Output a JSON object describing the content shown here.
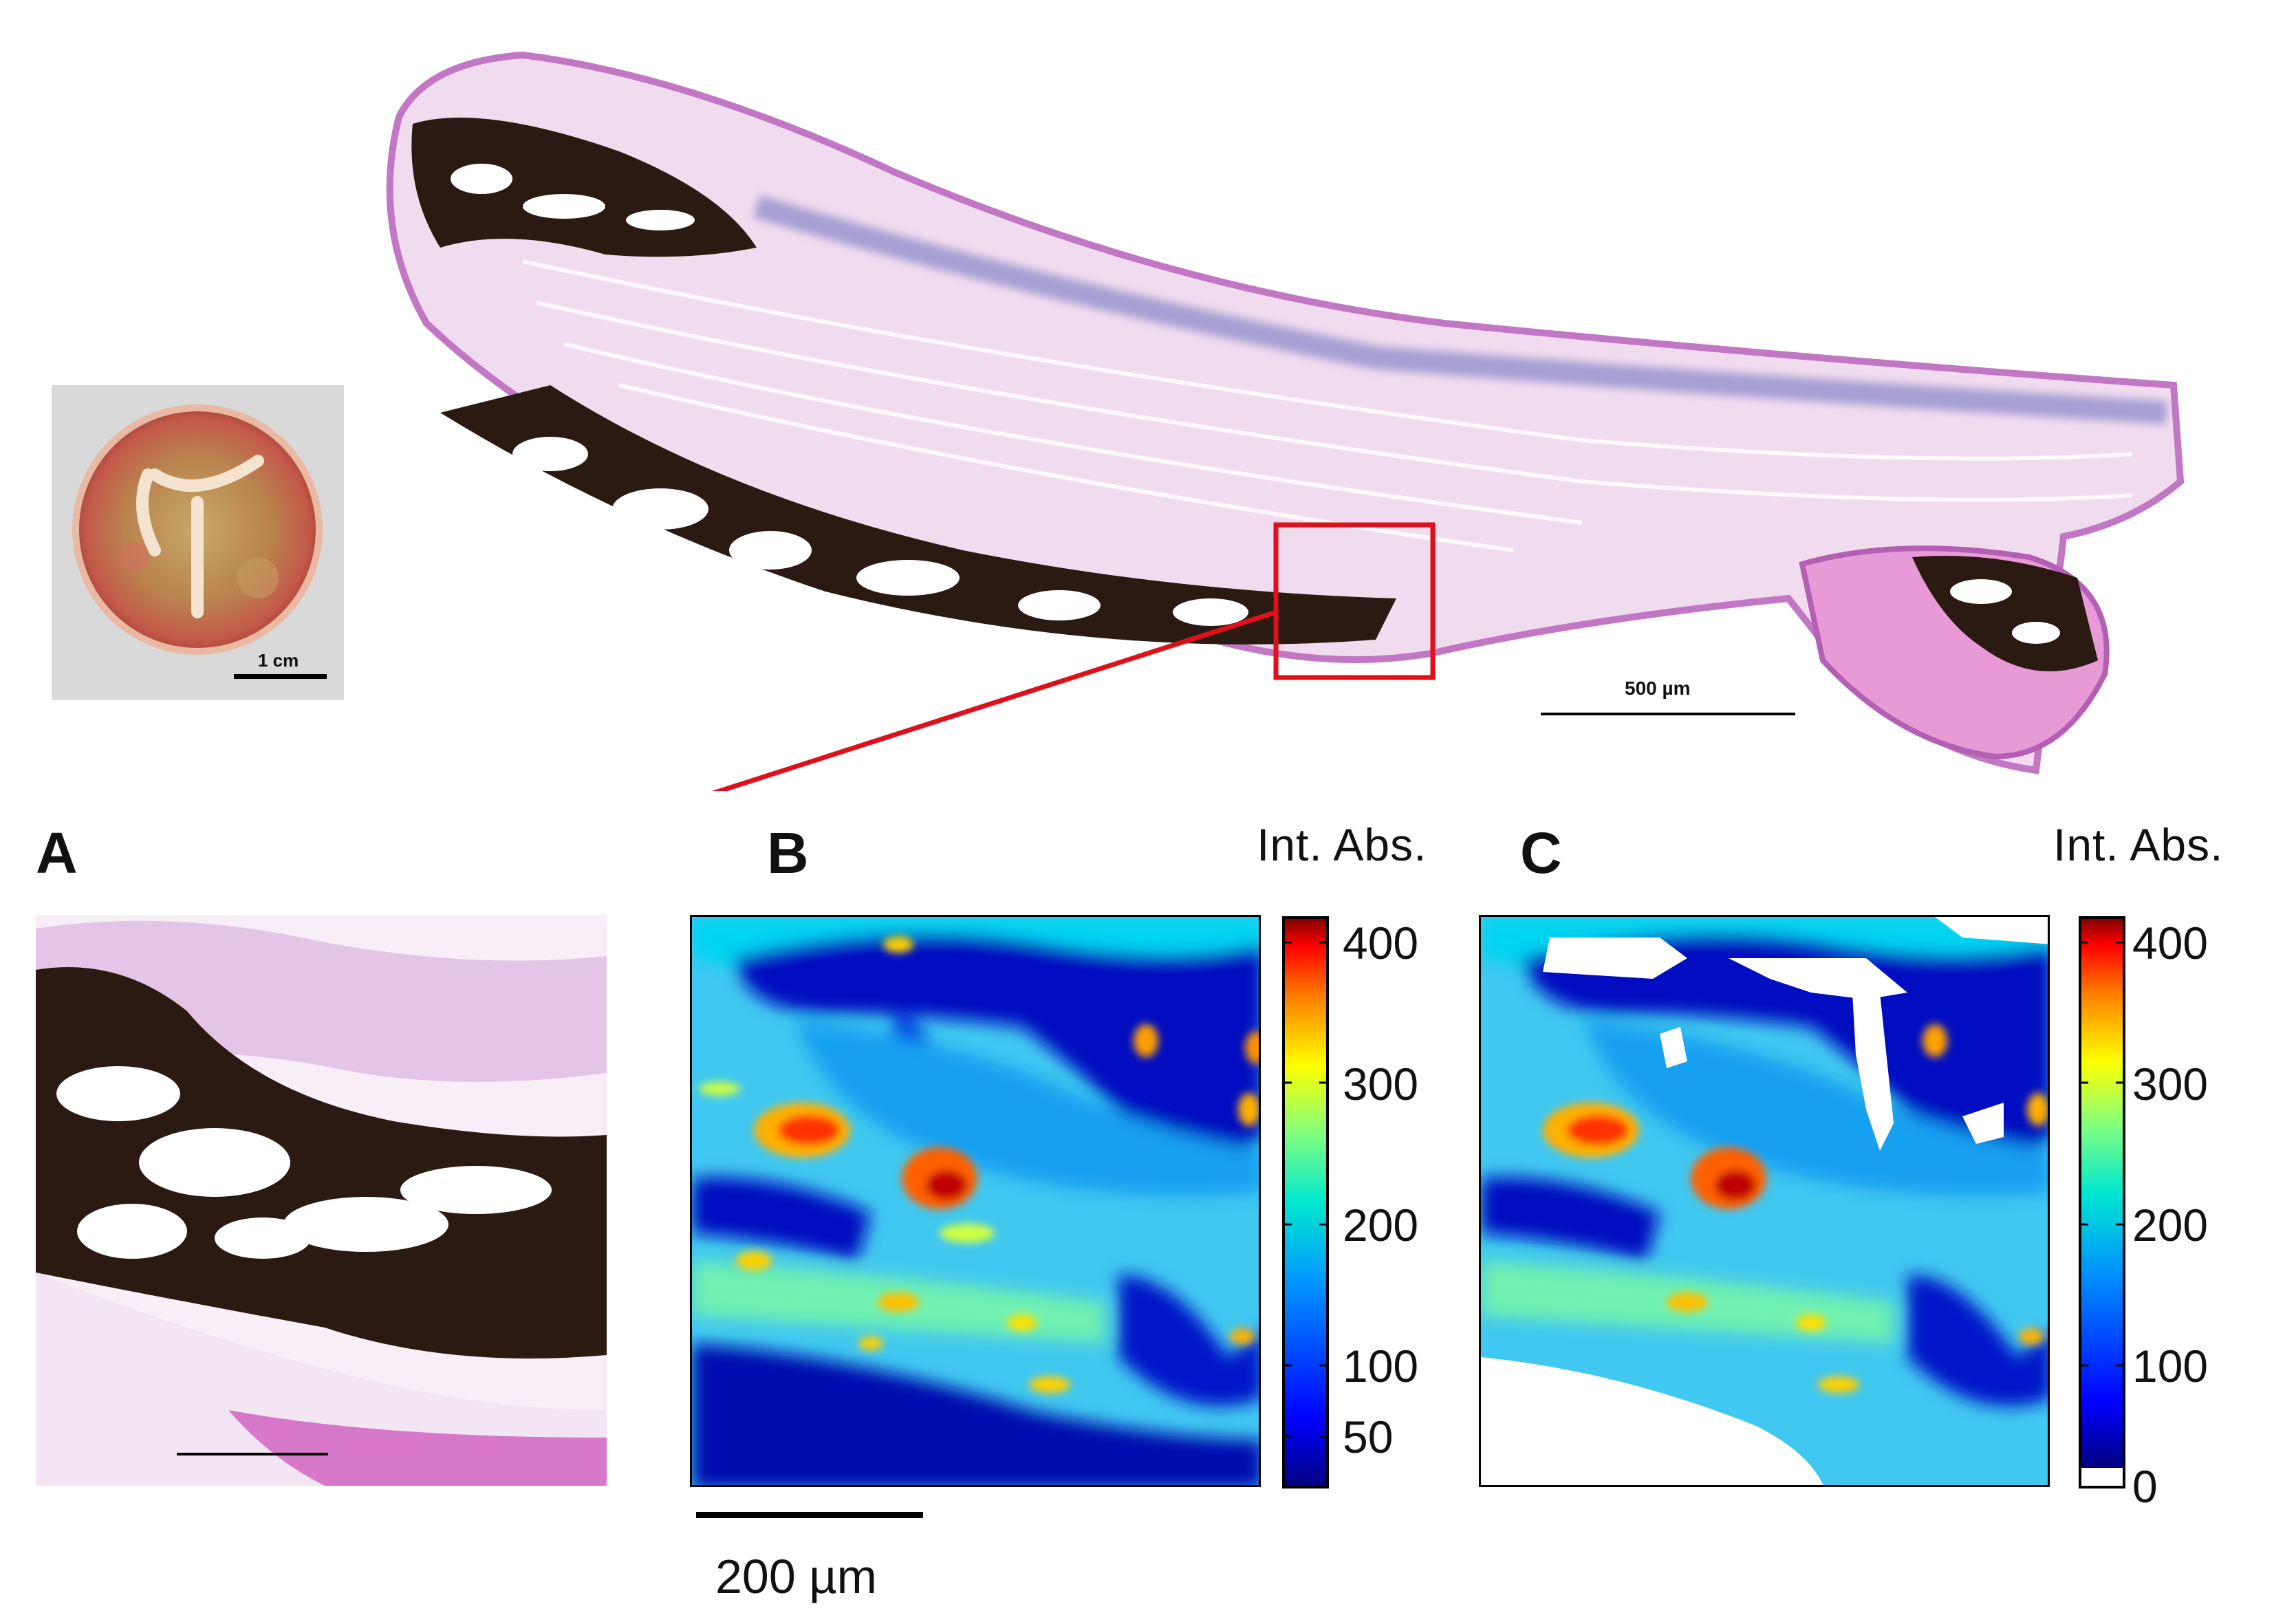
{
  "panels": {
    "a": "A",
    "b": "B",
    "c": "C"
  },
  "valve_photo": {
    "scale_label": "1 cm"
  },
  "section": {
    "scale_label": "500 µm",
    "zoom_box_color": "#e0101a"
  },
  "map_b": {
    "unit_label": "Int. Abs.",
    "colorbar_ticks": [
      "400",
      "300",
      "200",
      "100",
      "50"
    ]
  },
  "map_c": {
    "unit_label": "Int. Abs.",
    "colorbar_ticks": [
      "400",
      "300",
      "200",
      "100",
      "0"
    ]
  },
  "map_scale": {
    "label": "200 µm"
  },
  "colormap": [
    "#00007f",
    "#0000ff",
    "#0080ff",
    "#00ffff",
    "#80ff80",
    "#ffff00",
    "#ff8000",
    "#ff0000",
    "#7f0000"
  ]
}
